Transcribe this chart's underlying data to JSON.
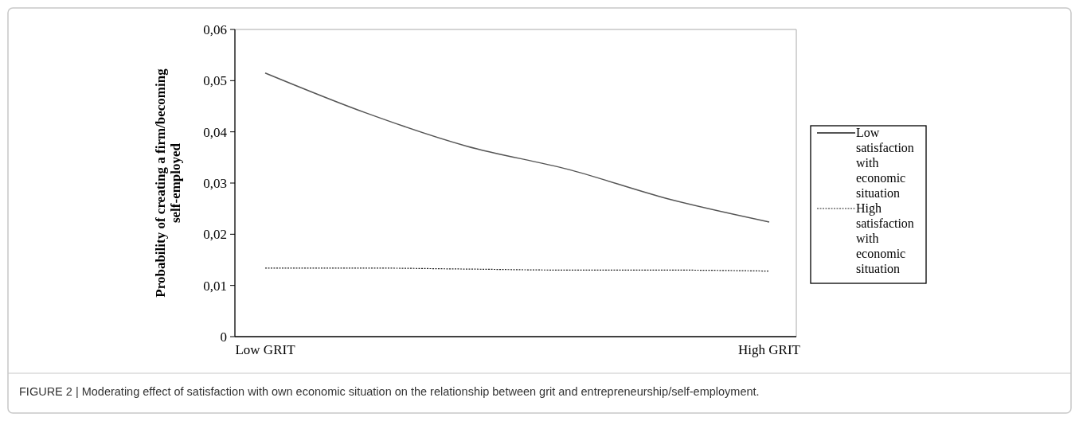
{
  "chart_data": {
    "type": "line",
    "ylabel": "Probability of creating a firm/becoming self-employed",
    "categories": [
      "Low GRIT",
      null,
      null,
      null,
      null,
      "High GRIT"
    ],
    "series": [
      {
        "name": "Low satisfaction with economic situation",
        "color": "#555555",
        "line_style": "solid",
        "values": [
          0.0515,
          0.0437,
          0.0372,
          0.0327,
          0.0269,
          0.0224
        ]
      },
      {
        "name": "High satisfaction with economic situation",
        "color": "#222222",
        "line_style": "dotted",
        "values": [
          0.0134,
          0.0134,
          0.0132,
          0.013,
          0.013,
          0.0128
        ]
      }
    ],
    "ylim": [
      0,
      0.06
    ],
    "yticks": [
      0,
      {
        "value": 0.01,
        "label": "0,01"
      },
      {
        "value": 0.02,
        "label": "0,02"
      },
      {
        "value": 0.03,
        "label": "0,03"
      },
      {
        "value": 0.04,
        "label": "0,04"
      },
      {
        "value": 0.05,
        "label": "0,05"
      },
      {
        "value": 0.06,
        "label": "0,06"
      }
    ],
    "grid": false,
    "legend": "right",
    "marker": "none",
    "annotations": [
      "FIGURE 2 | Moderating effect of satisfaction with own economic situation on the relationship between grit and entrepreneurship/self-employment."
    ]
  }
}
